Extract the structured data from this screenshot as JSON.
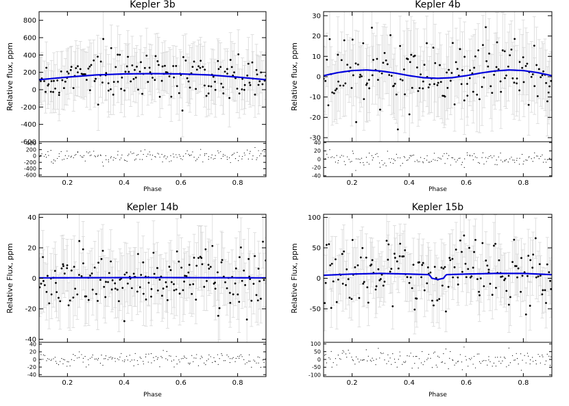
{
  "chart_data": [
    {
      "type": "scatter",
      "title": "Kepler 3b",
      "ylabel": "Relative flux, ppm",
      "xlabel": "Phase",
      "xlim": [
        0.1,
        0.9
      ],
      "ylim": [
        -600,
        900
      ],
      "yticks": [
        "-600",
        "-400",
        "-200",
        "0",
        "200",
        "400",
        "600",
        "800"
      ],
      "ytick_values": [
        -600,
        -400,
        -200,
        0,
        200,
        400,
        600,
        800
      ],
      "xticks": [
        "0.2",
        "0.4",
        "0.6",
        "0.8"
      ],
      "xtick_values": [
        0.2,
        0.4,
        0.6,
        0.8
      ],
      "residual_ylim": [
        -650,
        450
      ],
      "residual_yticks": [
        "-600",
        "-400",
        "-200",
        "0",
        "200",
        "400"
      ],
      "residual_ytick_values": [
        -600,
        -400,
        -200,
        0,
        200,
        400
      ],
      "model_curve": {
        "x": [
          0.1,
          0.2,
          0.3,
          0.4,
          0.5,
          0.6,
          0.7,
          0.8,
          0.9
        ],
        "y": [
          115,
          145,
          170,
          182,
          185,
          182,
          170,
          145,
          115
        ],
        "color": "#0000dd"
      },
      "scatter_stats": {
        "n": 170,
        "center": 175,
        "spread": 125,
        "errorbar": 280,
        "residual_spread": 90
      },
      "grid": false
    },
    {
      "type": "scatter",
      "title": "Kepler 4b",
      "ylabel": "Relative flux, ppm",
      "xlabel": "Phase",
      "xlim": [
        0.1,
        0.9
      ],
      "ylim": [
        -32,
        32
      ],
      "yticks": [
        "-30",
        "-20",
        "-10",
        "0",
        "10",
        "20",
        "30"
      ],
      "ytick_values": [
        -30,
        -20,
        -10,
        0,
        10,
        20,
        30
      ],
      "xticks": [
        "0.2",
        "0.4",
        "0.6",
        "0.8"
      ],
      "xtick_values": [
        0.2,
        0.4,
        0.6,
        0.8
      ],
      "residual_ylim": [
        -42,
        42
      ],
      "residual_yticks": [
        "-40",
        "-20",
        "0",
        "20",
        "40"
      ],
      "residual_ytick_values": [
        -40,
        -20,
        0,
        20,
        40
      ],
      "model_curve": {
        "x": [
          0.1,
          0.15,
          0.2,
          0.25,
          0.3,
          0.35,
          0.4,
          0.45,
          0.5,
          0.55,
          0.6,
          0.65,
          0.7,
          0.75,
          0.8,
          0.85,
          0.9
        ],
        "y": [
          0.5,
          2.0,
          3.0,
          3.3,
          2.8,
          1.8,
          0.5,
          -0.5,
          -0.8,
          -0.5,
          0.5,
          1.8,
          2.8,
          3.3,
          3.0,
          2.0,
          0.5
        ],
        "color": "#0000dd"
      },
      "scatter_stats": {
        "n": 170,
        "center": 2,
        "spread": 10,
        "errorbar": 16,
        "residual_spread": 9
      },
      "grid": false
    },
    {
      "type": "scatter",
      "title": "Kepler 14b",
      "ylabel": "Relative Flux, ppm",
      "xlabel": "Phase",
      "xlim": [
        0.1,
        0.9
      ],
      "ylim": [
        -42,
        42
      ],
      "yticks": [
        "-40",
        "-20",
        "0",
        "20",
        "40"
      ],
      "ytick_values": [
        -40,
        -20,
        0,
        20,
        40
      ],
      "xticks": [
        "0.2",
        "0.4",
        "0.6",
        "0.8"
      ],
      "xtick_values": [
        0.2,
        0.4,
        0.6,
        0.8
      ],
      "residual_ylim": [
        -45,
        45
      ],
      "residual_yticks": [
        "-40",
        "-20",
        "0",
        "20",
        "40"
      ],
      "residual_ytick_values": [
        -40,
        -20,
        0,
        20,
        40
      ],
      "model_curve": {
        "x": [
          0.1,
          0.3,
          0.5,
          0.7,
          0.9
        ],
        "y": [
          0.3,
          0.4,
          0.5,
          0.4,
          0.3
        ],
        "color": "#0000dd"
      },
      "scatter_stats": {
        "n": 170,
        "center": 0,
        "spread": 10,
        "errorbar": 18,
        "residual_spread": 9
      },
      "grid": false
    },
    {
      "type": "scatter",
      "title": "Kepler 15b",
      "ylabel": "Relative Flux, ppm",
      "xlabel": "Phase",
      "xlim": [
        0.1,
        0.9
      ],
      "ylim": [
        -105,
        105
      ],
      "yticks": [
        "-50",
        "0",
        "50",
        "100"
      ],
      "ytick_values": [
        -50,
        0,
        50,
        100
      ],
      "xticks": [
        "0.2",
        "0.4",
        "0.6",
        "0.8"
      ],
      "xtick_values": [
        0.2,
        0.4,
        0.6,
        0.8
      ],
      "residual_ylim": [
        -110,
        110
      ],
      "residual_yticks": [
        "-100",
        "-50",
        "0",
        "50",
        "100"
      ],
      "residual_ytick_values": [
        -100,
        -50,
        0,
        50,
        100
      ],
      "model_curve": {
        "x": [
          0.1,
          0.2,
          0.3,
          0.4,
          0.47,
          0.48,
          0.5,
          0.52,
          0.53,
          0.6,
          0.7,
          0.8,
          0.9
        ],
        "y": [
          5,
          7,
          8,
          7,
          6,
          0,
          -2,
          0,
          6,
          7,
          8,
          8,
          6
        ],
        "color": "#0000dd"
      },
      "scatter_stats": {
        "n": 170,
        "center": 5,
        "spread": 28,
        "errorbar": 40,
        "residual_spread": 30
      },
      "grid": false
    }
  ]
}
